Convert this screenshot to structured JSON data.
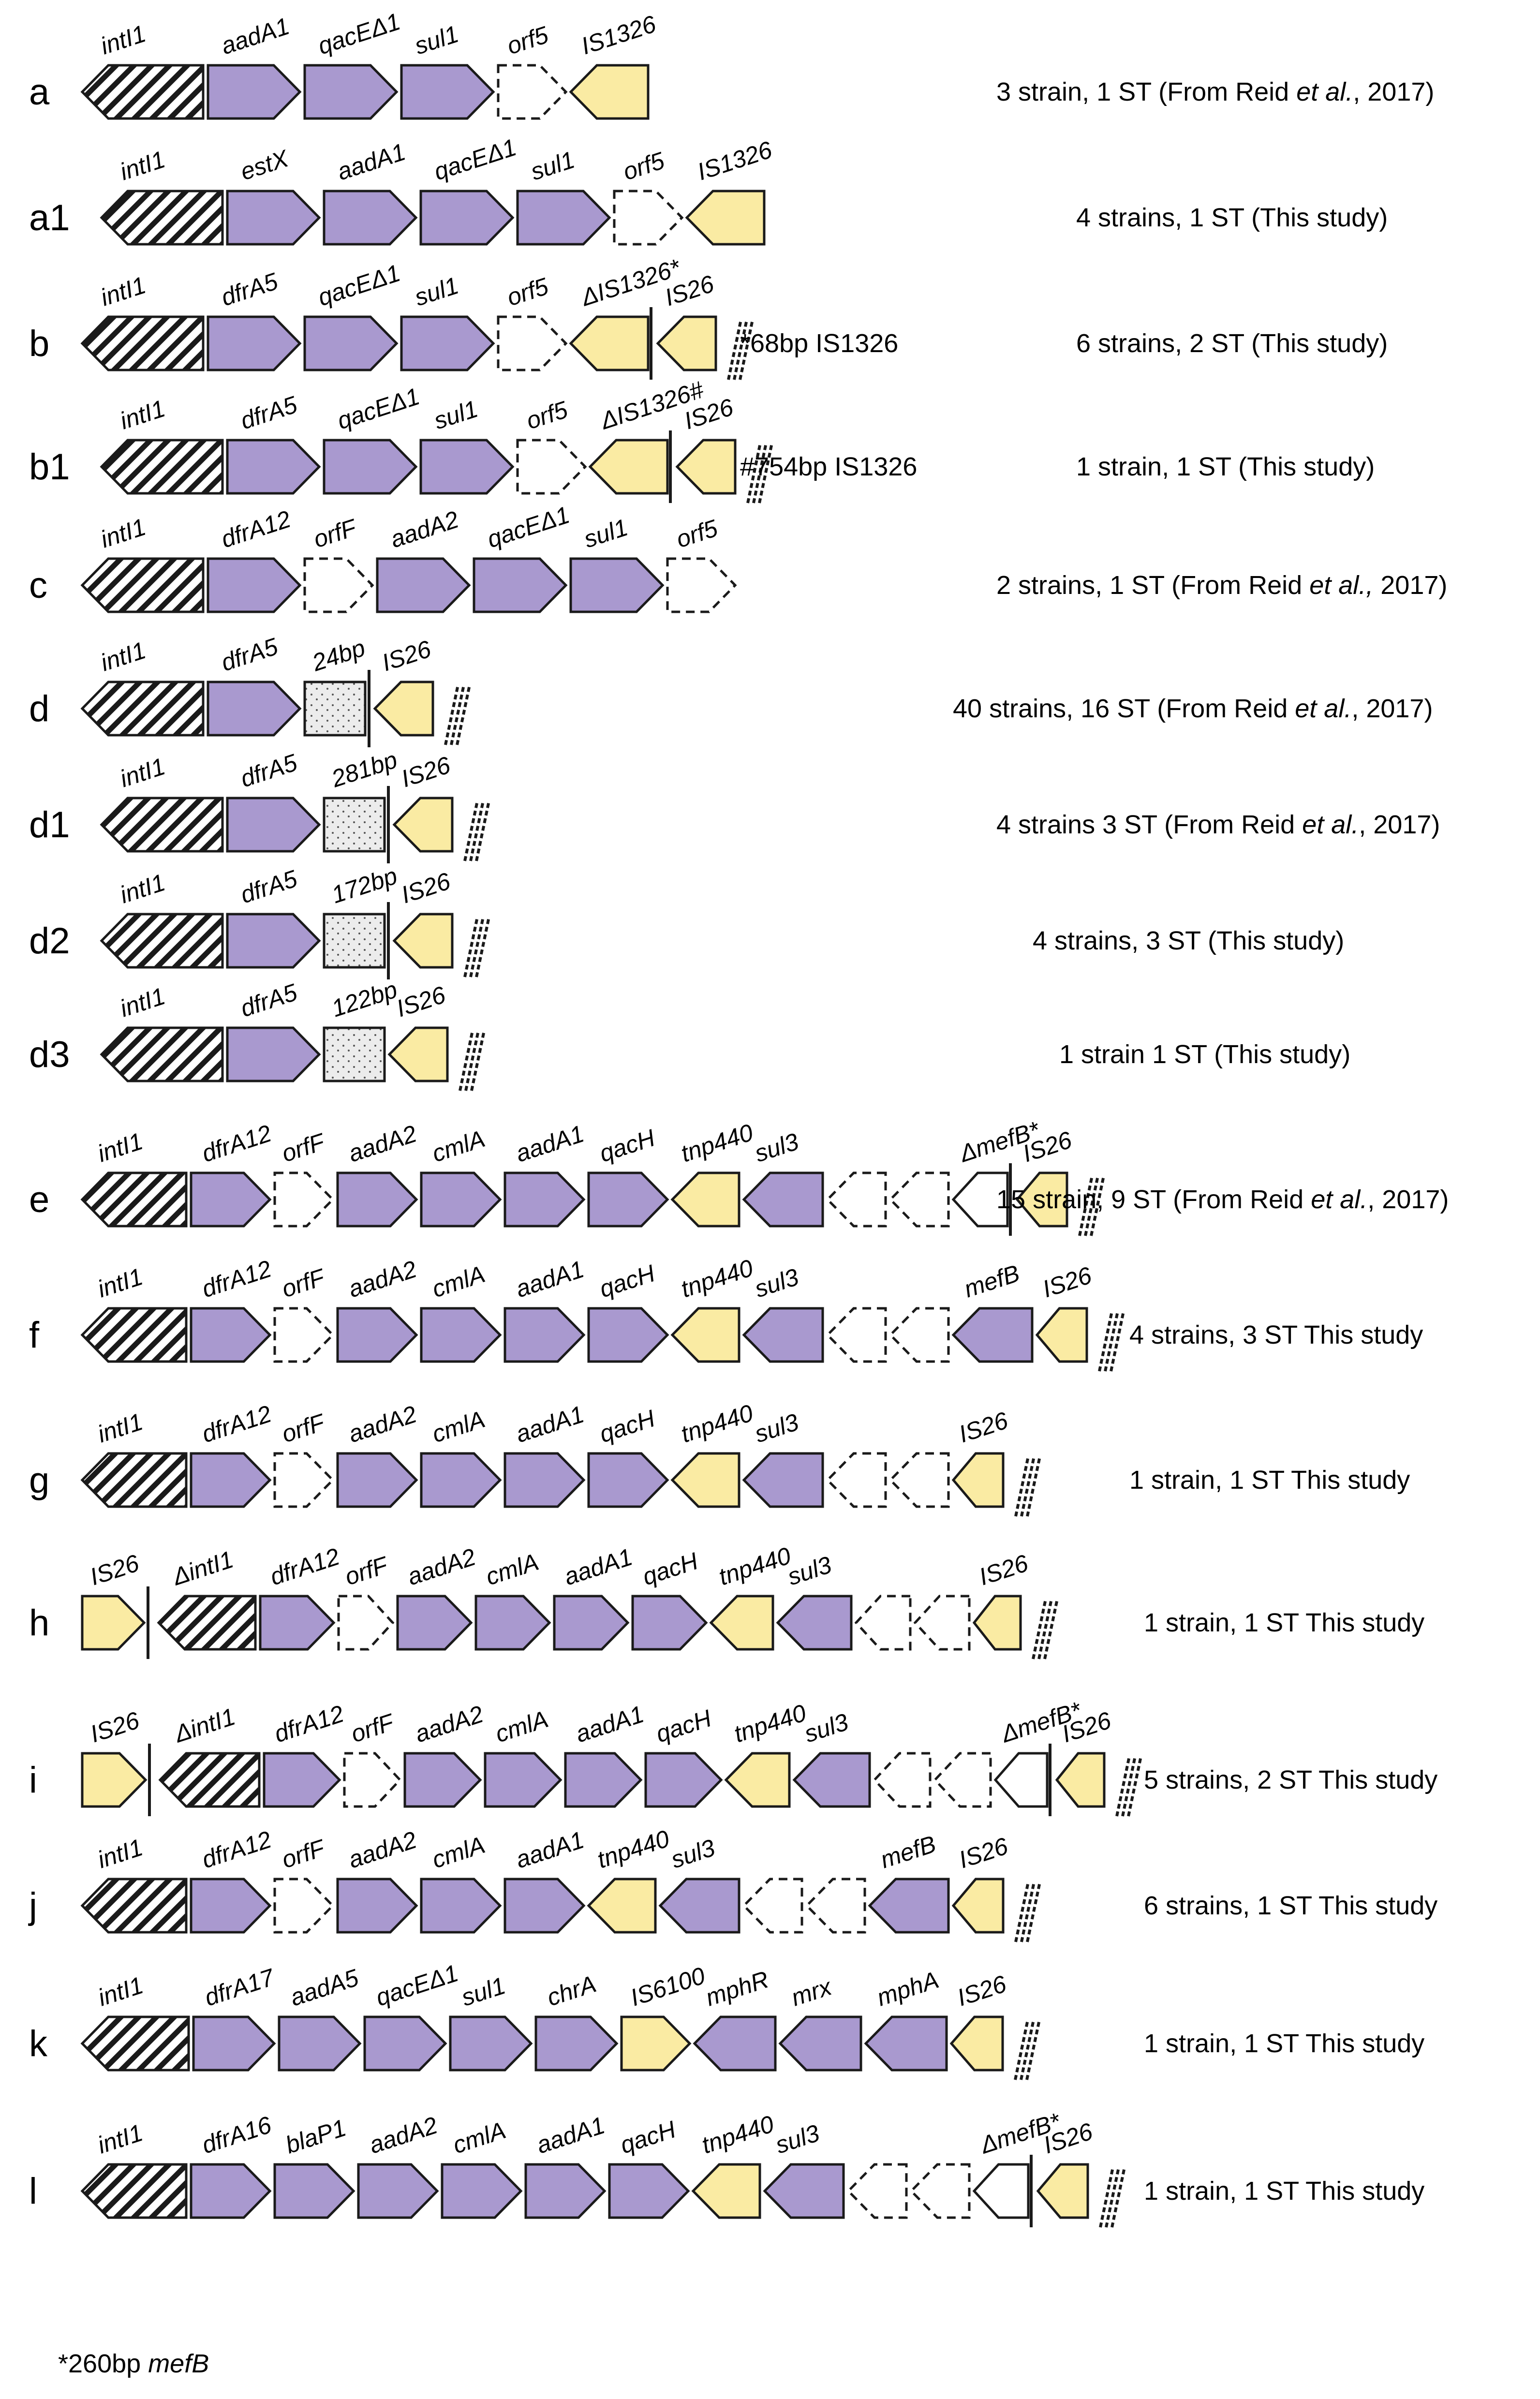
{
  "colors": {
    "purple": "#A999CF",
    "yellow": "#FAEBA3",
    "stroke": "#1A1A1A",
    "hatch": "#1A1A1A"
  },
  "rows": [
    {
      "label": "a",
      "desc_parts": [
        {
          "t": "3 strain, 1 ST (From Reid "
        },
        {
          "t": "et al.",
          "i": true
        },
        {
          "t": ", 2017)"
        }
      ],
      "genes": [
        {
          "name": "intI1",
          "type": "intl1",
          "dir": "L"
        },
        {
          "name": "aadA1",
          "type": "purple",
          "dir": "R"
        },
        {
          "name": "qacEΔ1",
          "type": "purple",
          "dir": "R"
        },
        {
          "name": "sul1",
          "type": "purple",
          "dir": "R"
        },
        {
          "name": "orf5",
          "type": "dashed",
          "dir": "R"
        },
        {
          "name": "IS1326",
          "type": "yellow",
          "dir": "L"
        }
      ]
    },
    {
      "label": "a1",
      "desc_parts": [
        {
          "t": "4 strains, 1 ST (This study)"
        }
      ],
      "genes": [
        {
          "name": "intI1",
          "type": "intl1",
          "dir": "L"
        },
        {
          "name": "estX",
          "type": "purple",
          "dir": "R"
        },
        {
          "name": "aadA1",
          "type": "purple",
          "dir": "R"
        },
        {
          "name": "qacEΔ1",
          "type": "purple",
          "dir": "R"
        },
        {
          "name": "sul1",
          "type": "purple",
          "dir": "R"
        },
        {
          "name": "orf5",
          "type": "dashed",
          "dir": "R"
        },
        {
          "name": "IS1326",
          "type": "yellow",
          "dir": "L"
        }
      ]
    },
    {
      "label": "b",
      "note": "*68bp IS1326",
      "desc_parts": [
        {
          "t": "6 strains, 2 ST (This study)"
        }
      ],
      "genes": [
        {
          "name": "intI1",
          "type": "intl1",
          "dir": "L"
        },
        {
          "name": "dfrA5",
          "type": "purple",
          "dir": "R"
        },
        {
          "name": "qacEΔ1",
          "type": "purple",
          "dir": "R"
        },
        {
          "name": "sul1",
          "type": "purple",
          "dir": "R"
        },
        {
          "name": "orf5",
          "type": "dashed",
          "dir": "R"
        },
        {
          "name": "ΔIS1326*",
          "type": "yellow",
          "dir": "L",
          "bar": true
        },
        {
          "name": "IS26",
          "type": "yellow",
          "dir": "L",
          "end": true
        }
      ]
    },
    {
      "label": "b1",
      "note": "#754bp IS1326",
      "desc_parts": [
        {
          "t": "1 strain, 1 ST (This study)"
        }
      ],
      "genes": [
        {
          "name": "intI1",
          "type": "intl1",
          "dir": "L"
        },
        {
          "name": "dfrA5",
          "type": "purple",
          "dir": "R"
        },
        {
          "name": "qacEΔ1",
          "type": "purple",
          "dir": "R"
        },
        {
          "name": "sul1",
          "type": "purple",
          "dir": "R"
        },
        {
          "name": "orf5",
          "type": "dashed",
          "dir": "R"
        },
        {
          "name": "ΔIS1326#",
          "type": "yellow",
          "dir": "L",
          "bar": true
        },
        {
          "name": "IS26",
          "type": "yellow",
          "dir": "L",
          "end": true
        }
      ]
    },
    {
      "label": "c",
      "desc_parts": [
        {
          "t": "2 strains, 1 ST (From Reid "
        },
        {
          "t": "et al.,",
          "i": true
        },
        {
          "t": " 2017)"
        }
      ],
      "genes": [
        {
          "name": "intI1",
          "type": "intl1",
          "dir": "L"
        },
        {
          "name": "dfrA12",
          "type": "purple",
          "dir": "R"
        },
        {
          "name": "orfF",
          "type": "dashed",
          "dir": "R"
        },
        {
          "name": "aadA2",
          "type": "purple",
          "dir": "R"
        },
        {
          "name": "qacEΔ1",
          "type": "purple",
          "dir": "R"
        },
        {
          "name": "sul1",
          "type": "purple",
          "dir": "R"
        },
        {
          "name": "orf5",
          "type": "dashed",
          "dir": "R"
        }
      ]
    },
    {
      "label": "d",
      "desc_parts": [
        {
          "t": "40 strains, 16 ST (From Reid "
        },
        {
          "t": "et al.",
          "i": true
        },
        {
          "t": ", 2017)"
        }
      ],
      "genes": [
        {
          "name": "intI1",
          "type": "intl1",
          "dir": "L"
        },
        {
          "name": "dfrA5",
          "type": "purple",
          "dir": "R"
        },
        {
          "name": "24bp",
          "type": "dotted",
          "dir": "N",
          "bar": true,
          "upright": true
        },
        {
          "name": "IS26",
          "type": "yellow",
          "dir": "L",
          "end": true
        }
      ]
    },
    {
      "label": "d1",
      "desc_parts": [
        {
          "t": "4 strains 3 ST (From Reid "
        },
        {
          "t": "et al.",
          "i": true
        },
        {
          "t": ", 2017)"
        }
      ],
      "genes": [
        {
          "name": "intI1",
          "type": "intl1",
          "dir": "L"
        },
        {
          "name": "dfrA5",
          "type": "purple",
          "dir": "R"
        },
        {
          "name": "281bp",
          "type": "dotted",
          "dir": "N",
          "bar": true,
          "upright": true
        },
        {
          "name": "IS26",
          "type": "yellow",
          "dir": "L",
          "end": true
        }
      ]
    },
    {
      "label": "d2",
      "desc_parts": [
        {
          "t": "4 strains, 3 ST (This study)"
        }
      ],
      "genes": [
        {
          "name": "intI1",
          "type": "intl1",
          "dir": "L"
        },
        {
          "name": "dfrA5",
          "type": "purple",
          "dir": "R"
        },
        {
          "name": "172bp",
          "type": "dotted",
          "dir": "N",
          "bar": true,
          "upright": true
        },
        {
          "name": "IS26",
          "type": "yellow",
          "dir": "L",
          "end": true
        }
      ]
    },
    {
      "label": "d3",
      "desc_parts": [
        {
          "t": "1 strain 1 ST (This study)"
        }
      ],
      "genes": [
        {
          "name": "intI1",
          "type": "intl1",
          "dir": "L"
        },
        {
          "name": "dfrA5",
          "type": "purple",
          "dir": "R"
        },
        {
          "name": "122bp",
          "type": "dotted",
          "dir": "N",
          "upright": true
        },
        {
          "name": "IS26",
          "type": "yellow",
          "dir": "L",
          "end": true
        }
      ]
    },
    {
      "label": "e",
      "desc_parts": [
        {
          "t": "15 strain, 9 ST (From Reid "
        },
        {
          "t": "et al.",
          "i": true
        },
        {
          "t": ", 2017)"
        }
      ],
      "genes": [
        {
          "name": "intI1",
          "type": "intl1",
          "dir": "L"
        },
        {
          "name": "dfrA12",
          "type": "purple",
          "dir": "R"
        },
        {
          "name": "orfF",
          "type": "dashed",
          "dir": "R"
        },
        {
          "name": "aadA2",
          "type": "purple",
          "dir": "R"
        },
        {
          "name": "cmlA",
          "type": "purple",
          "dir": "R"
        },
        {
          "name": "aadA1",
          "type": "purple",
          "dir": "R"
        },
        {
          "name": "qacH",
          "type": "purple",
          "dir": "R"
        },
        {
          "name": "tnp440",
          "type": "yellow",
          "dir": "L"
        },
        {
          "name": "sul3",
          "type": "purple",
          "dir": "L"
        },
        {
          "name": "",
          "type": "dashed",
          "dir": "L"
        },
        {
          "name": "",
          "type": "dashed",
          "dir": "L"
        },
        {
          "name": "ΔmefB*",
          "type": "white",
          "dir": "L",
          "bar": true
        },
        {
          "name": "IS26",
          "type": "yellow",
          "dir": "L",
          "end": true
        }
      ]
    },
    {
      "label": "f",
      "desc_parts": [
        {
          "t": "4 strains,  3 ST This study"
        }
      ],
      "genes": [
        {
          "name": "intI1",
          "type": "intl1",
          "dir": "L"
        },
        {
          "name": "dfrA12",
          "type": "purple",
          "dir": "R"
        },
        {
          "name": "orfF",
          "type": "dashed",
          "dir": "R"
        },
        {
          "name": "aadA2",
          "type": "purple",
          "dir": "R"
        },
        {
          "name": "cmlA",
          "type": "purple",
          "dir": "R"
        },
        {
          "name": "aadA1",
          "type": "purple",
          "dir": "R"
        },
        {
          "name": "qacH",
          "type": "purple",
          "dir": "R"
        },
        {
          "name": "tnp440",
          "type": "yellow",
          "dir": "L"
        },
        {
          "name": "sul3",
          "type": "purple",
          "dir": "L"
        },
        {
          "name": "",
          "type": "dashed",
          "dir": "L"
        },
        {
          "name": "",
          "type": "dashed",
          "dir": "L"
        },
        {
          "name": "mefB",
          "type": "purple",
          "dir": "L"
        },
        {
          "name": "IS26",
          "type": "yellow",
          "dir": "L",
          "end": true
        }
      ]
    },
    {
      "label": "g",
      "desc_parts": [
        {
          "t": "1 strain, 1 ST This study"
        }
      ],
      "genes": [
        {
          "name": "intI1",
          "type": "intl1",
          "dir": "L"
        },
        {
          "name": "dfrA12",
          "type": "purple",
          "dir": "R"
        },
        {
          "name": "orfF",
          "type": "dashed",
          "dir": "R"
        },
        {
          "name": "aadA2",
          "type": "purple",
          "dir": "R"
        },
        {
          "name": "cmlA",
          "type": "purple",
          "dir": "R"
        },
        {
          "name": "aadA1",
          "type": "purple",
          "dir": "R"
        },
        {
          "name": "qacH",
          "type": "purple",
          "dir": "R"
        },
        {
          "name": "tnp440",
          "type": "yellow",
          "dir": "L"
        },
        {
          "name": "sul3",
          "type": "purple",
          "dir": "L"
        },
        {
          "name": "",
          "type": "dashed",
          "dir": "L"
        },
        {
          "name": "",
          "type": "dashed",
          "dir": "L"
        },
        {
          "name": "IS26",
          "type": "yellow",
          "dir": "L",
          "end": true
        }
      ]
    },
    {
      "label": "h",
      "desc_parts": [
        {
          "t": "1 strain, 1 ST This study"
        }
      ],
      "genes": [
        {
          "name": "IS26",
          "type": "yellow",
          "dir": "R",
          "barAfter": true
        },
        {
          "name": "ΔintI1",
          "type": "intl1",
          "dir": "L"
        },
        {
          "name": "dfrA12",
          "type": "purple",
          "dir": "R"
        },
        {
          "name": "orfF",
          "type": "dashed",
          "dir": "R"
        },
        {
          "name": "aadA2",
          "type": "purple",
          "dir": "R"
        },
        {
          "name": "cmlA",
          "type": "purple",
          "dir": "R"
        },
        {
          "name": "aadA1",
          "type": "purple",
          "dir": "R"
        },
        {
          "name": "qacH",
          "type": "purple",
          "dir": "R"
        },
        {
          "name": "tnp440",
          "type": "yellow",
          "dir": "L"
        },
        {
          "name": "sul3",
          "type": "purple",
          "dir": "L"
        },
        {
          "name": "",
          "type": "dashed",
          "dir": "L"
        },
        {
          "name": "",
          "type": "dashed",
          "dir": "L"
        },
        {
          "name": "IS26",
          "type": "yellow",
          "dir": "L",
          "end": true
        }
      ]
    },
    {
      "label": "i",
      "desc_parts": [
        {
          "t": "5 strains, 2 ST This study"
        }
      ],
      "genes": [
        {
          "name": "IS26",
          "type": "yellow",
          "dir": "R",
          "barAfter": true
        },
        {
          "name": "ΔintI1",
          "type": "intl1",
          "dir": "L"
        },
        {
          "name": "dfrA12",
          "type": "purple",
          "dir": "R"
        },
        {
          "name": "orfF",
          "type": "dashed",
          "dir": "R"
        },
        {
          "name": "aadA2",
          "type": "purple",
          "dir": "R"
        },
        {
          "name": "cmlA",
          "type": "purple",
          "dir": "R"
        },
        {
          "name": "aadA1",
          "type": "purple",
          "dir": "R"
        },
        {
          "name": "qacH",
          "type": "purple",
          "dir": "R"
        },
        {
          "name": "tnp440",
          "type": "yellow",
          "dir": "L"
        },
        {
          "name": "sul3",
          "type": "purple",
          "dir": "L"
        },
        {
          "name": "",
          "type": "dashed",
          "dir": "L"
        },
        {
          "name": "",
          "type": "dashed",
          "dir": "L"
        },
        {
          "name": "ΔmefB*",
          "type": "white",
          "dir": "L",
          "bar": true
        },
        {
          "name": "IS26",
          "type": "yellow",
          "dir": "L",
          "end": true
        }
      ]
    },
    {
      "label": "j",
      "desc_parts": [
        {
          "t": "6 strains, 1 ST This study"
        }
      ],
      "genes": [
        {
          "name": "intI1",
          "type": "intl1",
          "dir": "L"
        },
        {
          "name": "dfrA12",
          "type": "purple",
          "dir": "R"
        },
        {
          "name": "orfF",
          "type": "dashed",
          "dir": "R"
        },
        {
          "name": "aadA2",
          "type": "purple",
          "dir": "R"
        },
        {
          "name": "cmlA",
          "type": "purple",
          "dir": "R"
        },
        {
          "name": "aadA1",
          "type": "purple",
          "dir": "R"
        },
        {
          "name": "tnp440",
          "type": "yellow",
          "dir": "L"
        },
        {
          "name": "sul3",
          "type": "purple",
          "dir": "L"
        },
        {
          "name": "",
          "type": "dashed",
          "dir": "L"
        },
        {
          "name": "",
          "type": "dashed",
          "dir": "L"
        },
        {
          "name": "mefB",
          "type": "purple",
          "dir": "L"
        },
        {
          "name": "IS26",
          "type": "yellow",
          "dir": "L",
          "end": true
        }
      ]
    },
    {
      "label": "k",
      "desc_parts": [
        {
          "t": "1 strain, 1 ST This study"
        }
      ],
      "genes": [
        {
          "name": "intI1",
          "type": "intl1",
          "dir": "L"
        },
        {
          "name": "dfrA17",
          "type": "purple",
          "dir": "R"
        },
        {
          "name": "aadA5",
          "type": "purple",
          "dir": "R"
        },
        {
          "name": "qacEΔ1",
          "type": "purple",
          "dir": "R"
        },
        {
          "name": "sul1",
          "type": "purple",
          "dir": "R"
        },
        {
          "name": "chrA",
          "type": "purple",
          "dir": "R"
        },
        {
          "name": "IS6100",
          "type": "yellow",
          "dir": "R"
        },
        {
          "name": "mphR",
          "type": "purple",
          "dir": "L"
        },
        {
          "name": "mrx",
          "type": "purple",
          "dir": "L"
        },
        {
          "name": "mphA",
          "type": "purple",
          "dir": "L"
        },
        {
          "name": "IS26",
          "type": "yellow",
          "dir": "L",
          "end": true
        }
      ]
    },
    {
      "label": "l",
      "desc_parts": [
        {
          "t": "1 strain, 1 ST This study"
        }
      ],
      "genes": [
        {
          "name": "intI1",
          "type": "intl1",
          "dir": "L"
        },
        {
          "name": "dfrA16",
          "type": "purple",
          "dir": "R"
        },
        {
          "name": "blaP1",
          "type": "purple",
          "dir": "R"
        },
        {
          "name": "aadA2",
          "type": "purple",
          "dir": "R"
        },
        {
          "name": "cmlA",
          "type": "purple",
          "dir": "R"
        },
        {
          "name": "aadA1",
          "type": "purple",
          "dir": "R"
        },
        {
          "name": "qacH",
          "type": "purple",
          "dir": "R"
        },
        {
          "name": "tnp440",
          "type": "yellow",
          "dir": "L"
        },
        {
          "name": "sul3",
          "type": "purple",
          "dir": "L"
        },
        {
          "name": "",
          "type": "dashed",
          "dir": "L"
        },
        {
          "name": "",
          "type": "dashed",
          "dir": "L"
        },
        {
          "name": "ΔmefB*",
          "type": "white",
          "dir": "L",
          "bar": true
        },
        {
          "name": "IS26",
          "type": "yellow",
          "dir": "L",
          "end": true
        }
      ]
    }
  ],
  "footnote": {
    "prefix": "*260bp ",
    "italic": "mefB"
  }
}
